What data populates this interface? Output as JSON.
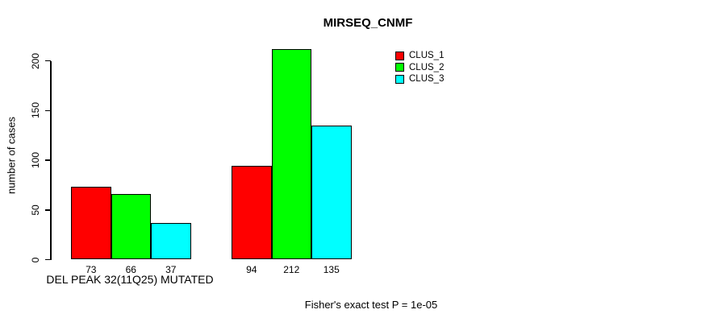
{
  "chart_data": {
    "type": "bar",
    "title": "MIRSEQ_CNMF",
    "ylabel": "number of cases",
    "xlabel": "DEL PEAK 32(11Q25) MUTATED",
    "footnote": "Fisher's exact test P = 1e-05",
    "yticks": [
      0,
      50,
      100,
      150,
      200
    ],
    "ylim": [
      0,
      212
    ],
    "grid": false,
    "legend_position": "top-right",
    "groups": [
      "DEL PEAK 32(11Q25) MUTATED",
      ""
    ],
    "series": [
      {
        "name": "CLUS_1",
        "color": "#ff0000",
        "values": [
          73,
          94
        ]
      },
      {
        "name": "CLUS_2",
        "color": "#00ff00",
        "values": [
          66,
          212
        ]
      },
      {
        "name": "CLUS_3",
        "color": "#00ffff",
        "values": [
          37,
          135
        ]
      }
    ],
    "bar_value_labels": [
      [
        73,
        66,
        37
      ],
      [
        94,
        212,
        135
      ]
    ]
  }
}
